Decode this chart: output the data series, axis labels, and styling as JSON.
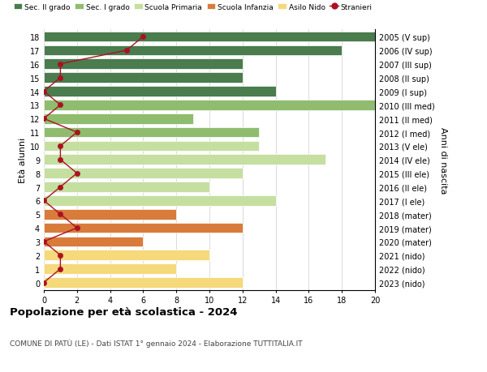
{
  "ages": [
    18,
    17,
    16,
    15,
    14,
    13,
    12,
    11,
    10,
    9,
    8,
    7,
    6,
    5,
    4,
    3,
    2,
    1,
    0
  ],
  "right_labels": [
    "2005 (V sup)",
    "2006 (IV sup)",
    "2007 (III sup)",
    "2008 (II sup)",
    "2009 (I sup)",
    "2010 (III med)",
    "2011 (II med)",
    "2012 (I med)",
    "2013 (V ele)",
    "2014 (IV ele)",
    "2015 (III ele)",
    "2016 (II ele)",
    "2017 (I ele)",
    "2018 (mater)",
    "2019 (mater)",
    "2020 (mater)",
    "2021 (nido)",
    "2022 (nido)",
    "2023 (nido)"
  ],
  "bar_values": [
    20,
    18,
    12,
    12,
    14,
    20,
    9,
    13,
    13,
    17,
    12,
    10,
    14,
    8,
    12,
    6,
    10,
    8,
    12
  ],
  "bar_colors": [
    "#4a7c4e",
    "#4a7c4e",
    "#4a7c4e",
    "#4a7c4e",
    "#4a7c4e",
    "#8fbc6e",
    "#8fbc6e",
    "#8fbc6e",
    "#c5dfa0",
    "#c5dfa0",
    "#c5dfa0",
    "#c5dfa0",
    "#c5dfa0",
    "#d97b3a",
    "#d97b3a",
    "#d97b3a",
    "#f5d97a",
    "#f5d97a",
    "#f5d97a"
  ],
  "stranieri_values": [
    6,
    5,
    1,
    1,
    0,
    1,
    0,
    2,
    1,
    1,
    2,
    1,
    0,
    1,
    2,
    0,
    1,
    1,
    0
  ],
  "stranieri_color": "#aa1122",
  "legend_labels": [
    "Sec. II grado",
    "Sec. I grado",
    "Scuola Primaria",
    "Scuola Infanzia",
    "Asilo Nido",
    "Stranieri"
  ],
  "legend_colors": [
    "#4a7c4e",
    "#8fbc6e",
    "#c5dfa0",
    "#d97b3a",
    "#f5d97a",
    "#aa1122"
  ],
  "title": "Popolazione per età scolastica - 2024",
  "subtitle": "COMUNE DI PATÙ (LE) - Dati ISTAT 1° gennaio 2024 - Elaborazione TUTTITALIA.IT",
  "ylabel_left": "Età alunni",
  "ylabel_right": "Anni di nascita",
  "xlim": [
    0,
    20
  ],
  "xticks": [
    0,
    2,
    4,
    6,
    8,
    10,
    12,
    14,
    16,
    18,
    20
  ],
  "background_color": "#ffffff",
  "bar_height": 0.75,
  "grid_color": "#cccccc"
}
